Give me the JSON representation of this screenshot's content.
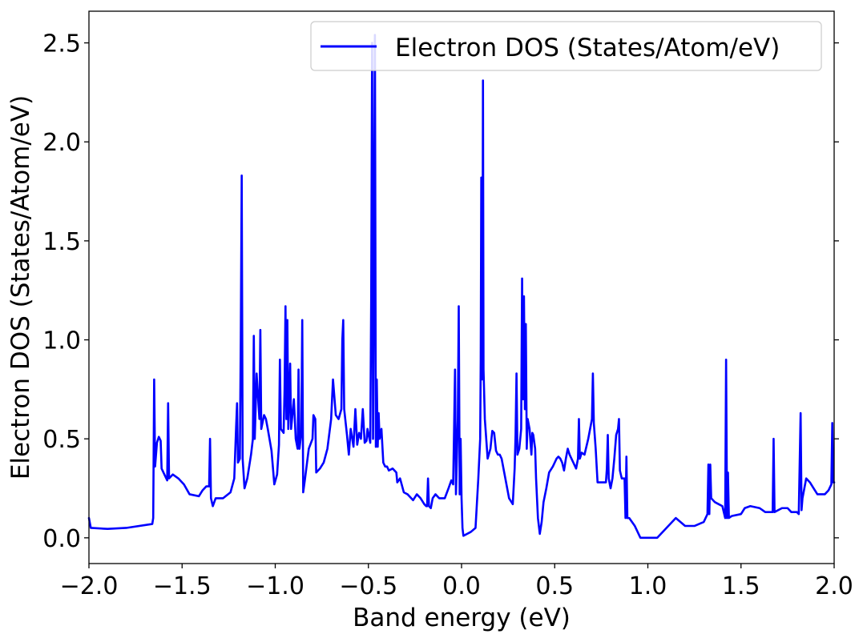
{
  "chart_data": {
    "type": "line",
    "title": "",
    "xlabel": "Band energy (eV)",
    "ylabel": "Electron DOS (States/Atom/eV)",
    "xlim": [
      -2.0,
      2.0
    ],
    "ylim": [
      -0.13,
      2.66
    ],
    "x_ticks": [
      -2.0,
      -1.5,
      -1.0,
      -0.5,
      0.0,
      0.5,
      1.0,
      1.5,
      2.0
    ],
    "x_tick_labels": [
      "−2.0",
      "−1.5",
      "−1.0",
      "−0.5",
      "0.0",
      "0.5",
      "1.0",
      "1.5",
      "2.0"
    ],
    "y_ticks": [
      0.0,
      0.5,
      1.0,
      1.5,
      2.0,
      2.5
    ],
    "y_tick_labels": [
      "0.0",
      "0.5",
      "1.0",
      "1.5",
      "2.0",
      "2.5"
    ],
    "grid": false,
    "legend": {
      "position": "top-right",
      "entries": [
        "Electron DOS (States/Atom/eV)"
      ]
    },
    "series": [
      {
        "name": "Electron DOS (States/Atom/eV)",
        "color": "#0000ff",
        "points": [
          [
            -2.0,
            0.1
          ],
          [
            -1.99,
            0.05
          ],
          [
            -1.9,
            0.045
          ],
          [
            -1.8,
            0.05
          ],
          [
            -1.66,
            0.07
          ],
          [
            -1.655,
            0.1
          ],
          [
            -1.65,
            0.8
          ],
          [
            -1.645,
            0.36
          ],
          [
            -1.635,
            0.48
          ],
          [
            -1.625,
            0.51
          ],
          [
            -1.615,
            0.49
          ],
          [
            -1.61,
            0.35
          ],
          [
            -1.58,
            0.29
          ],
          [
            -1.575,
            0.68
          ],
          [
            -1.57,
            0.3
          ],
          [
            -1.55,
            0.32
          ],
          [
            -1.52,
            0.3
          ],
          [
            -1.49,
            0.27
          ],
          [
            -1.46,
            0.22
          ],
          [
            -1.41,
            0.21
          ],
          [
            -1.39,
            0.24
          ],
          [
            -1.37,
            0.26
          ],
          [
            -1.355,
            0.26
          ],
          [
            -1.35,
            0.5
          ],
          [
            -1.345,
            0.2
          ],
          [
            -1.335,
            0.16
          ],
          [
            -1.32,
            0.2
          ],
          [
            -1.28,
            0.2
          ],
          [
            -1.24,
            0.23
          ],
          [
            -1.22,
            0.3
          ],
          [
            -1.21,
            0.56
          ],
          [
            -1.205,
            0.68
          ],
          [
            -1.2,
            0.38
          ],
          [
            -1.19,
            0.4
          ],
          [
            -1.185,
            1.0
          ],
          [
            -1.18,
            1.83
          ],
          [
            -1.175,
            0.4
          ],
          [
            -1.165,
            0.25
          ],
          [
            -1.15,
            0.3
          ],
          [
            -1.13,
            0.42
          ],
          [
            -1.12,
            0.5
          ],
          [
            -1.115,
            1.02
          ],
          [
            -1.11,
            0.5
          ],
          [
            -1.1,
            0.83
          ],
          [
            -1.095,
            0.75
          ],
          [
            -1.085,
            0.6
          ],
          [
            -1.08,
            1.05
          ],
          [
            -1.075,
            0.55
          ],
          [
            -1.06,
            0.62
          ],
          [
            -1.05,
            0.6
          ],
          [
            -1.04,
            0.55
          ],
          [
            -1.02,
            0.44
          ],
          [
            -1.005,
            0.27
          ],
          [
            -0.99,
            0.32
          ],
          [
            -0.98,
            0.47
          ],
          [
            -0.975,
            0.9
          ],
          [
            -0.97,
            0.55
          ],
          [
            -0.955,
            0.53
          ],
          [
            -0.95,
            0.75
          ],
          [
            -0.945,
            1.17
          ],
          [
            -0.94,
            0.6
          ],
          [
            -0.935,
            1.1
          ],
          [
            -0.93,
            0.55
          ],
          [
            -0.92,
            0.88
          ],
          [
            -0.915,
            0.55
          ],
          [
            -0.9,
            0.7
          ],
          [
            -0.89,
            0.5
          ],
          [
            -0.88,
            0.45
          ],
          [
            -0.875,
            0.85
          ],
          [
            -0.87,
            0.45
          ],
          [
            -0.86,
            0.53
          ],
          [
            -0.855,
            1.1
          ],
          [
            -0.85,
            0.23
          ],
          [
            -0.84,
            0.3
          ],
          [
            -0.82,
            0.45
          ],
          [
            -0.8,
            0.5
          ],
          [
            -0.795,
            0.62
          ],
          [
            -0.785,
            0.6
          ],
          [
            -0.78,
            0.33
          ],
          [
            -0.76,
            0.35
          ],
          [
            -0.74,
            0.38
          ],
          [
            -0.72,
            0.45
          ],
          [
            -0.7,
            0.6
          ],
          [
            -0.69,
            0.8
          ],
          [
            -0.675,
            0.62
          ],
          [
            -0.66,
            0.6
          ],
          [
            -0.645,
            0.65
          ],
          [
            -0.64,
            1.0
          ],
          [
            -0.635,
            1.1
          ],
          [
            -0.63,
            0.65
          ],
          [
            -0.615,
            0.52
          ],
          [
            -0.605,
            0.42
          ],
          [
            -0.595,
            0.55
          ],
          [
            -0.58,
            0.46
          ],
          [
            -0.57,
            0.65
          ],
          [
            -0.56,
            0.47
          ],
          [
            -0.55,
            0.53
          ],
          [
            -0.54,
            0.5
          ],
          [
            -0.53,
            0.65
          ],
          [
            -0.52,
            0.48
          ],
          [
            -0.51,
            0.49
          ],
          [
            -0.505,
            0.55
          ],
          [
            -0.49,
            0.48
          ],
          [
            -0.485,
            1.2
          ],
          [
            -0.48,
            2.5
          ],
          [
            -0.475,
            0.5
          ],
          [
            -0.47,
            1.42
          ],
          [
            -0.465,
            2.54
          ],
          [
            -0.46,
            0.46
          ],
          [
            -0.455,
            0.8
          ],
          [
            -0.45,
            0.46
          ],
          [
            -0.445,
            0.63
          ],
          [
            -0.44,
            0.5
          ],
          [
            -0.43,
            0.55
          ],
          [
            -0.42,
            0.38
          ],
          [
            -0.41,
            0.36
          ],
          [
            -0.4,
            0.36
          ],
          [
            -0.39,
            0.34
          ],
          [
            -0.37,
            0.35
          ],
          [
            -0.35,
            0.33
          ],
          [
            -0.345,
            0.28
          ],
          [
            -0.33,
            0.3
          ],
          [
            -0.31,
            0.23
          ],
          [
            -0.29,
            0.22
          ],
          [
            -0.26,
            0.19
          ],
          [
            -0.24,
            0.22
          ],
          [
            -0.22,
            0.2
          ],
          [
            -0.2,
            0.17
          ],
          [
            -0.19,
            0.16
          ],
          [
            -0.185,
            0.16
          ],
          [
            -0.18,
            0.3
          ],
          [
            -0.175,
            0.16
          ],
          [
            -0.165,
            0.15
          ],
          [
            -0.155,
            0.2
          ],
          [
            -0.14,
            0.22
          ],
          [
            -0.12,
            0.2
          ],
          [
            -0.09,
            0.2
          ],
          [
            -0.07,
            0.25
          ],
          [
            -0.055,
            0.29
          ],
          [
            -0.045,
            0.27
          ],
          [
            -0.04,
            0.55
          ],
          [
            -0.035,
            0.85
          ],
          [
            -0.03,
            0.22
          ],
          [
            -0.02,
            0.6
          ],
          [
            -0.015,
            1.17
          ],
          [
            -0.01,
            0.22
          ],
          [
            -0.005,
            0.5
          ],
          [
            0.0,
            0.2
          ],
          [
            0.005,
            0.05
          ],
          [
            0.01,
            0.01
          ],
          [
            0.05,
            0.03
          ],
          [
            0.075,
            0.05
          ],
          [
            0.09,
            0.3
          ],
          [
            0.1,
            0.5
          ],
          [
            0.103,
            0.9
          ],
          [
            0.106,
            1.82
          ],
          [
            0.109,
            0.8
          ],
          [
            0.112,
            1.0
          ],
          [
            0.115,
            2.31
          ],
          [
            0.118,
            0.85
          ],
          [
            0.125,
            0.6
          ],
          [
            0.14,
            0.4
          ],
          [
            0.155,
            0.45
          ],
          [
            0.165,
            0.54
          ],
          [
            0.175,
            0.53
          ],
          [
            0.185,
            0.44
          ],
          [
            0.195,
            0.42
          ],
          [
            0.205,
            0.42
          ],
          [
            0.215,
            0.4
          ],
          [
            0.235,
            0.3
          ],
          [
            0.255,
            0.2
          ],
          [
            0.275,
            0.17
          ],
          [
            0.285,
            0.35
          ],
          [
            0.29,
            0.52
          ],
          [
            0.295,
            0.83
          ],
          [
            0.3,
            0.42
          ],
          [
            0.31,
            0.45
          ],
          [
            0.32,
            0.55
          ],
          [
            0.325,
            1.31
          ],
          [
            0.33,
            0.7
          ],
          [
            0.335,
            1.22
          ],
          [
            0.34,
            0.65
          ],
          [
            0.345,
            1.08
          ],
          [
            0.35,
            0.45
          ],
          [
            0.355,
            0.6
          ],
          [
            0.365,
            0.55
          ],
          [
            0.375,
            0.42
          ],
          [
            0.38,
            0.53
          ],
          [
            0.385,
            0.52
          ],
          [
            0.395,
            0.45
          ],
          [
            0.4,
            0.3
          ],
          [
            0.41,
            0.1
          ],
          [
            0.42,
            0.02
          ],
          [
            0.43,
            0.08
          ],
          [
            0.44,
            0.18
          ],
          [
            0.455,
            0.25
          ],
          [
            0.47,
            0.33
          ],
          [
            0.49,
            0.36
          ],
          [
            0.5,
            0.38
          ],
          [
            0.51,
            0.4
          ],
          [
            0.52,
            0.41
          ],
          [
            0.53,
            0.4
          ],
          [
            0.54,
            0.38
          ],
          [
            0.55,
            0.34
          ],
          [
            0.56,
            0.4
          ],
          [
            0.57,
            0.45
          ],
          [
            0.58,
            0.42
          ],
          [
            0.59,
            0.4
          ],
          [
            0.6,
            0.38
          ],
          [
            0.615,
            0.35
          ],
          [
            0.625,
            0.4
          ],
          [
            0.63,
            0.6
          ],
          [
            0.635,
            0.4
          ],
          [
            0.645,
            0.43
          ],
          [
            0.66,
            0.42
          ],
          [
            0.68,
            0.5
          ],
          [
            0.69,
            0.55
          ],
          [
            0.7,
            0.6
          ],
          [
            0.705,
            0.83
          ],
          [
            0.71,
            0.58
          ],
          [
            0.72,
            0.45
          ],
          [
            0.73,
            0.28
          ],
          [
            0.75,
            0.28
          ],
          [
            0.775,
            0.28
          ],
          [
            0.78,
            0.35
          ],
          [
            0.785,
            0.52
          ],
          [
            0.79,
            0.3
          ],
          [
            0.8,
            0.25
          ],
          [
            0.81,
            0.3
          ],
          [
            0.82,
            0.4
          ],
          [
            0.83,
            0.52
          ],
          [
            0.84,
            0.55
          ],
          [
            0.845,
            0.6
          ],
          [
            0.85,
            0.34
          ],
          [
            0.86,
            0.3
          ],
          [
            0.875,
            0.3
          ],
          [
            0.88,
            0.1
          ],
          [
            0.885,
            0.41
          ],
          [
            0.89,
            0.1
          ],
          [
            0.9,
            0.1
          ],
          [
            0.93,
            0.06
          ],
          [
            0.96,
            0.0
          ],
          [
            1.0,
            0.0
          ],
          [
            1.05,
            0.0
          ],
          [
            1.1,
            0.05
          ],
          [
            1.15,
            0.1
          ],
          [
            1.2,
            0.06
          ],
          [
            1.25,
            0.06
          ],
          [
            1.3,
            0.08
          ],
          [
            1.32,
            0.12
          ],
          [
            1.325,
            0.37
          ],
          [
            1.33,
            0.12
          ],
          [
            1.335,
            0.37
          ],
          [
            1.34,
            0.2
          ],
          [
            1.36,
            0.18
          ],
          [
            1.38,
            0.17
          ],
          [
            1.4,
            0.16
          ],
          [
            1.415,
            0.1
          ],
          [
            1.42,
            0.9
          ],
          [
            1.425,
            0.1
          ],
          [
            1.43,
            0.33
          ],
          [
            1.435,
            0.1
          ],
          [
            1.45,
            0.11
          ],
          [
            1.5,
            0.12
          ],
          [
            1.52,
            0.15
          ],
          [
            1.55,
            0.16
          ],
          [
            1.6,
            0.15
          ],
          [
            1.63,
            0.13
          ],
          [
            1.67,
            0.13
          ],
          [
            1.675,
            0.5
          ],
          [
            1.68,
            0.13
          ],
          [
            1.72,
            0.15
          ],
          [
            1.75,
            0.15
          ],
          [
            1.77,
            0.13
          ],
          [
            1.8,
            0.13
          ],
          [
            1.81,
            0.12
          ],
          [
            1.82,
            0.63
          ],
          [
            1.825,
            0.14
          ],
          [
            1.83,
            0.2
          ],
          [
            1.85,
            0.3
          ],
          [
            1.87,
            0.28
          ],
          [
            1.89,
            0.25
          ],
          [
            1.91,
            0.22
          ],
          [
            1.95,
            0.22
          ],
          [
            1.97,
            0.24
          ],
          [
            1.985,
            0.27
          ],
          [
            1.99,
            0.58
          ],
          [
            1.995,
            0.28
          ],
          [
            2.0,
            0.28
          ]
        ]
      }
    ]
  }
}
